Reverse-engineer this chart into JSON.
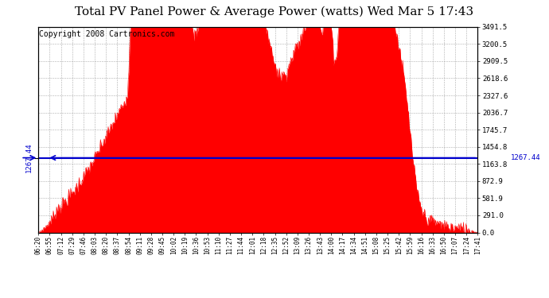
{
  "title": "Total PV Panel Power & Average Power (watts) Wed Mar 5 17:43",
  "copyright": "Copyright 2008 Cartronics.com",
  "average_power": 1267.44,
  "y_max": 3491.5,
  "y_min": 0.0,
  "y_ticks": [
    0.0,
    291.0,
    581.9,
    872.9,
    1163.8,
    1454.8,
    1745.7,
    2036.7,
    2327.6,
    2618.6,
    2909.5,
    3200.5,
    3491.5
  ],
  "x_tick_labels": [
    "06:20",
    "06:55",
    "07:12",
    "07:29",
    "07:46",
    "08:03",
    "08:20",
    "08:37",
    "08:54",
    "09:11",
    "09:28",
    "09:45",
    "10:02",
    "10:19",
    "10:36",
    "10:53",
    "11:10",
    "11:27",
    "11:44",
    "12:01",
    "12:18",
    "12:35",
    "12:52",
    "13:09",
    "13:26",
    "13:43",
    "14:00",
    "14:17",
    "14:34",
    "14:51",
    "15:08",
    "15:25",
    "15:42",
    "15:59",
    "16:16",
    "16:33",
    "16:50",
    "17:07",
    "17:24",
    "17:41"
  ],
  "fill_color": "#FF0000",
  "line_color": "#0000CC",
  "bg_color": "#FFFFFF",
  "grid_color": "#999999",
  "title_fontsize": 11,
  "copyright_fontsize": 7
}
